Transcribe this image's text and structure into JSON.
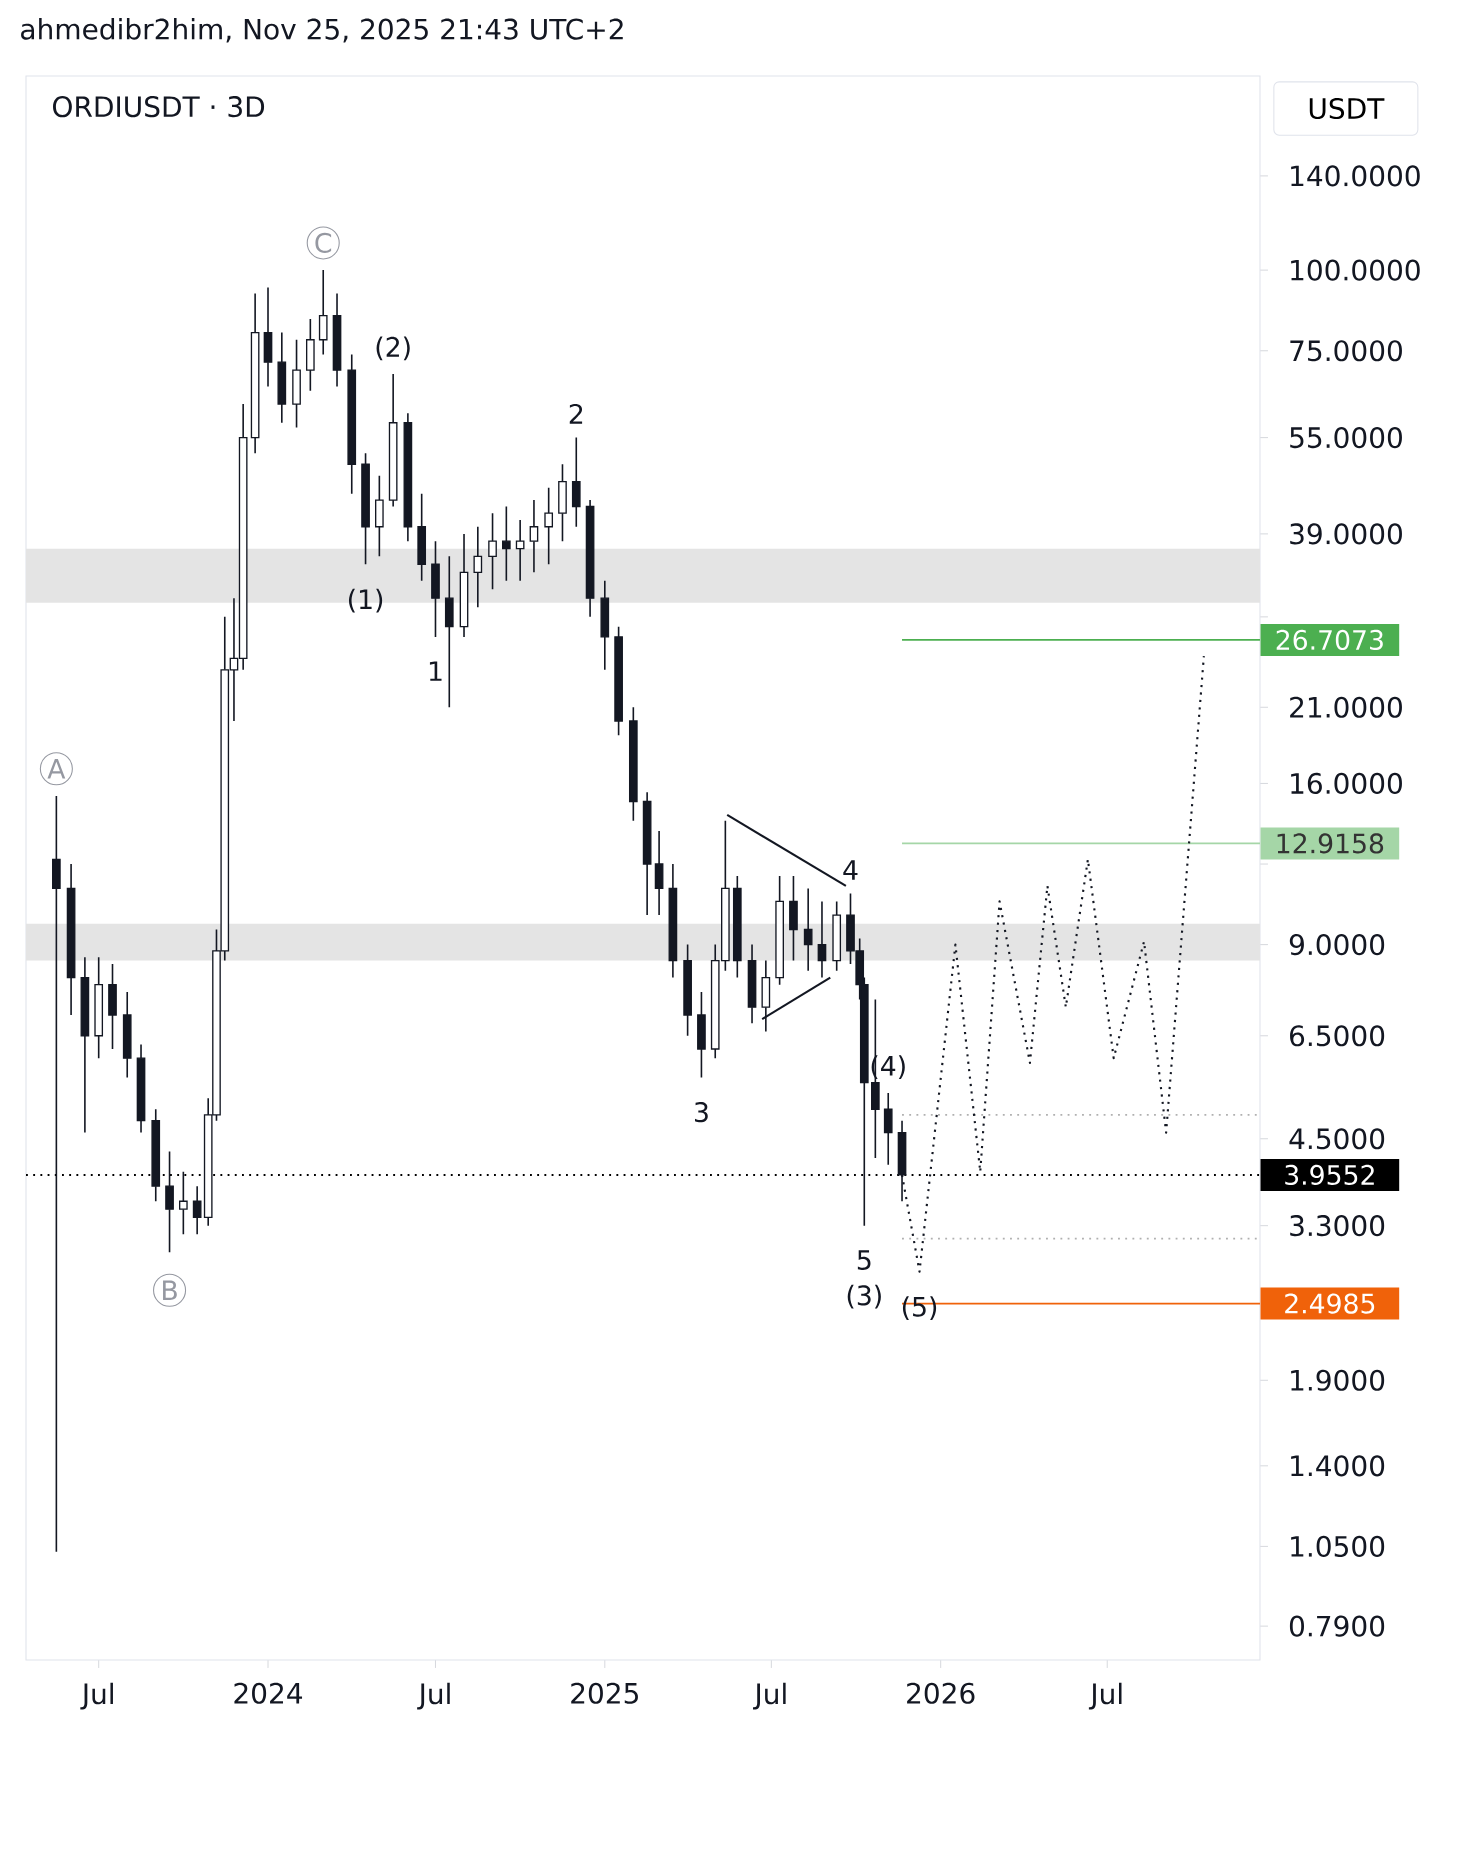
{
  "chart_data": {
    "type": "candlestick",
    "title": "ORDIUSDT · 3D",
    "ylabel": "USDT",
    "annotations": [
      "ahmedibr2him, Nov 25, 2025 21:43 UTC+2",
      {
        "text": "A",
        "x": "2023-05-16",
        "y": 15.3
      },
      {
        "text": "B",
        "x": "2023-09-16",
        "y": 3.0
      },
      {
        "text": "C",
        "x": "2024-03-01",
        "y": 100
      },
      {
        "text": "(2)",
        "x": "2024-05-16",
        "y": 69
      },
      {
        "text": "(1)",
        "x": "2024-04-16",
        "y": 35
      },
      {
        "text": "1",
        "x": "2024-07-01",
        "y": 27
      },
      {
        "text": "2",
        "x": "2024-12-01",
        "y": 55
      },
      {
        "text": "3",
        "x": "2025-04-16",
        "y": 5.6
      },
      {
        "text": "4",
        "x": "2025-09-25",
        "y": 10.8
      },
      {
        "text": "(4)",
        "x": "2025-11-05",
        "y": 5.3
      },
      {
        "text": "5",
        "x": "2025-10-10",
        "y": 3.3
      },
      {
        "text": "(3)",
        "x": "2025-10-10",
        "y": 3.3
      },
      {
        "text": "(5)",
        "x": "2025-12-09",
        "y": 2.8
      }
    ],
    "x": [
      "2023-05-16",
      "2023-06-01",
      "2023-06-16",
      "2023-07-01",
      "2023-07-16",
      "2023-08-01",
      "2023-08-16",
      "2023-09-01",
      "2023-09-16",
      "2023-10-01",
      "2023-10-16",
      "2023-10-28",
      "2023-11-06",
      "2023-11-15",
      "2023-11-25",
      "2023-12-05",
      "2023-12-18",
      "2024-01-01",
      "2024-01-16",
      "2024-02-01",
      "2024-02-16",
      "2024-03-01",
      "2024-03-16",
      "2024-04-01",
      "2024-04-16",
      "2024-05-01",
      "2024-05-16",
      "2024-06-01",
      "2024-06-16",
      "2024-07-01",
      "2024-07-16",
      "2024-08-01",
      "2024-08-16",
      "2024-09-01",
      "2024-09-16",
      "2024-10-01",
      "2024-10-16",
      "2024-11-01",
      "2024-11-16",
      "2024-12-01",
      "2024-12-16",
      "2025-01-01",
      "2025-01-16",
      "2025-02-01",
      "2025-02-16",
      "2025-03-01",
      "2025-03-16",
      "2025-04-01",
      "2025-04-16",
      "2025-05-01",
      "2025-05-12",
      "2025-05-25",
      "2025-06-10",
      "2025-06-25",
      "2025-07-10",
      "2025-07-25",
      "2025-08-10",
      "2025-08-25",
      "2025-09-10",
      "2025-09-25",
      "2025-10-05",
      "2025-10-10",
      "2025-10-22",
      "2025-11-05",
      "2025-11-20"
    ],
    "ohlc": [
      [
        12.2,
        15.3,
        1.03,
        11.0
      ],
      [
        11.0,
        12.0,
        7.0,
        8.0
      ],
      [
        8.0,
        8.6,
        4.6,
        6.5
      ],
      [
        6.5,
        8.6,
        6.0,
        7.8
      ],
      [
        7.8,
        8.4,
        6.2,
        7.0
      ],
      [
        7.0,
        7.6,
        5.6,
        6.0
      ],
      [
        6.0,
        6.3,
        4.6,
        4.8
      ],
      [
        4.8,
        5.0,
        3.6,
        3.8
      ],
      [
        3.8,
        4.3,
        3.0,
        3.5
      ],
      [
        3.5,
        4.0,
        3.2,
        3.6
      ],
      [
        3.6,
        3.8,
        3.2,
        3.4
      ],
      [
        3.4,
        5.2,
        3.3,
        4.9
      ],
      [
        4.9,
        9.5,
        4.8,
        8.8
      ],
      [
        8.8,
        29,
        8.5,
        24
      ],
      [
        24,
        31,
        20,
        25
      ],
      [
        25,
        62,
        24,
        55
      ],
      [
        55,
        92,
        52,
        80
      ],
      [
        80,
        94,
        66,
        72
      ],
      [
        72,
        80,
        58,
        62
      ],
      [
        62,
        78,
        57,
        70
      ],
      [
        70,
        84,
        65,
        78
      ],
      [
        78,
        100,
        74,
        85
      ],
      [
        85,
        92,
        66,
        70
      ],
      [
        70,
        74,
        45,
        50
      ],
      [
        50,
        52,
        35,
        40
      ],
      [
        40,
        48,
        36,
        44
      ],
      [
        44,
        69,
        43,
        58
      ],
      [
        58,
        60,
        38,
        40
      ],
      [
        40,
        45,
        33,
        35
      ],
      [
        35,
        38,
        27,
        31
      ],
      [
        31,
        36,
        21,
        28
      ],
      [
        28,
        39,
        27,
        34
      ],
      [
        34,
        40,
        30,
        36
      ],
      [
        36,
        42,
        32,
        38
      ],
      [
        38,
        43,
        33,
        37
      ],
      [
        37,
        41,
        33,
        38
      ],
      [
        38,
        44,
        34,
        40
      ],
      [
        40,
        46,
        35,
        42
      ],
      [
        42,
        50,
        38,
        47
      ],
      [
        47,
        55,
        40,
        43
      ],
      [
        43,
        44,
        29,
        31
      ],
      [
        31,
        33,
        24,
        27
      ],
      [
        27,
        28,
        19,
        20
      ],
      [
        20,
        21,
        14,
        15
      ],
      [
        15,
        15.5,
        10,
        12
      ],
      [
        12,
        13.5,
        10,
        11
      ],
      [
        11,
        12,
        8,
        8.5
      ],
      [
        8.5,
        9,
        6.5,
        7.0
      ],
      [
        7.0,
        7.6,
        5.6,
        6.2
      ],
      [
        6.2,
        9.0,
        6.0,
        8.5
      ],
      [
        8.5,
        14,
        8.2,
        11
      ],
      [
        11,
        11.5,
        8.0,
        8.5
      ],
      [
        8.5,
        9,
        6.8,
        7.2
      ],
      [
        7.2,
        8.5,
        6.6,
        8.0
      ],
      [
        8.0,
        11.5,
        7.8,
        10.5
      ],
      [
        10.5,
        11.5,
        8.5,
        9.5
      ],
      [
        9.5,
        11,
        8.2,
        9.0
      ],
      [
        9.0,
        10.5,
        8.0,
        8.5
      ],
      [
        8.5,
        10.5,
        8.2,
        10
      ],
      [
        10,
        10.8,
        8.4,
        8.8
      ],
      [
        8.8,
        9.2,
        7.4,
        7.8
      ],
      [
        7.8,
        8.0,
        3.3,
        5.5
      ],
      [
        5.5,
        7.4,
        4.2,
        5.0
      ],
      [
        5.0,
        5.3,
        4.1,
        4.6
      ],
      [
        4.6,
        4.8,
        3.6,
        3.9552
      ]
    ],
    "series": [
      {
        "type": "line",
        "color": "#131722",
        "line_style": "dotted",
        "x": [
          "2025-11-20",
          "2025-12-09",
          "2026-01-17",
          "2026-02-13",
          "2026-03-06",
          "2026-04-08",
          "2026-04-27",
          "2026-05-17",
          "2026-06-10",
          "2026-07-08",
          "2026-08-10",
          "2026-09-03",
          "2026-10-14"
        ],
        "values": [
          3.9552,
          2.8,
          9.0,
          4.0,
          10.5,
          5.9,
          11.1,
          7.2,
          12.2,
          6.0,
          9.1,
          4.6,
          25.2
        ]
      },
      {
        "type": "line",
        "color": "#131722",
        "line_style": "solid",
        "x": [
          "2025-05-14",
          "2025-09-20"
        ],
        "values": [
          14.3,
          11.1
        ]
      },
      {
        "type": "line",
        "color": "#131722",
        "line_style": "solid",
        "x": [
          "2025-06-21",
          "2025-09-03"
        ],
        "values": [
          6.9,
          8.0
        ]
      }
    ],
    "marker": "none",
    "ref_lines": [
      {
        "axis": "y",
        "value": 26.7073,
        "label": "26.7073",
        "color": "#4caf50",
        "line_style": "solid"
      },
      {
        "axis": "y",
        "value": 12.9158,
        "label": "12.9158",
        "color": "#a5d6a7",
        "line_style": "solid"
      },
      {
        "axis": "y",
        "value": 3.9552,
        "label": "3.9552",
        "color": "#000000",
        "line_style": "dotted"
      },
      {
        "axis": "y",
        "value": 2.4985,
        "label": "2.4985",
        "color": "#f0620a",
        "line_style": "solid"
      },
      {
        "axis": "y",
        "value": 4.9,
        "color": "#b0b0b0",
        "line_style": "dotted"
      },
      {
        "axis": "y",
        "value": 3.15,
        "color": "#b0b0b0",
        "line_style": "dotted"
      }
    ],
    "bands": [
      {
        "axis": "y",
        "from": 30.5,
        "to": 37,
        "color": "#e4e4e4"
      },
      {
        "axis": "y",
        "from": 8.5,
        "to": 9.7,
        "color": "#e4e4e4"
      }
    ],
    "log": "y",
    "grid": false,
    "xlim": [
      "2023-04-13",
      "2026-12-14"
    ],
    "xticks": [
      {
        "value": "2023-07-01",
        "label": "Jul"
      },
      {
        "value": "2024-01-01",
        "label": "2024"
      },
      {
        "value": "2024-07-01",
        "label": "Jul"
      },
      {
        "value": "2025-01-01",
        "label": "2025"
      },
      {
        "value": "2025-07-01",
        "label": "Jul"
      },
      {
        "value": "2026-01-01",
        "label": "2026"
      },
      {
        "value": "2026-07-01",
        "label": "Jul"
      }
    ],
    "ylim": [
      0.7,
      200
    ],
    "yticks": [
      {
        "value": 140,
        "label": "140.0000"
      },
      {
        "value": 100,
        "label": "100.0000"
      },
      {
        "value": 75,
        "label": "75.0000"
      },
      {
        "value": 55,
        "label": "55.0000"
      },
      {
        "value": 39,
        "label": "39.0000"
      },
      {
        "value": 29,
        "label": null
      },
      {
        "value": 21,
        "label": "21.0000"
      },
      {
        "value": 16,
        "label": "16.0000"
      },
      {
        "value": 12,
        "label": null
      },
      {
        "value": 9,
        "label": "9.0000"
      },
      {
        "value": 6.5,
        "label": "6.5000"
      },
      {
        "value": 4.5,
        "label": "4.5000"
      },
      {
        "value": 3.3,
        "label": "3.3000"
      },
      {
        "value": 1.9,
        "label": "1.9000"
      },
      {
        "value": 1.4,
        "label": "1.4000"
      },
      {
        "value": 1.05,
        "label": "1.0500"
      },
      {
        "value": 0.79,
        "label": "0.7900"
      }
    ]
  }
}
